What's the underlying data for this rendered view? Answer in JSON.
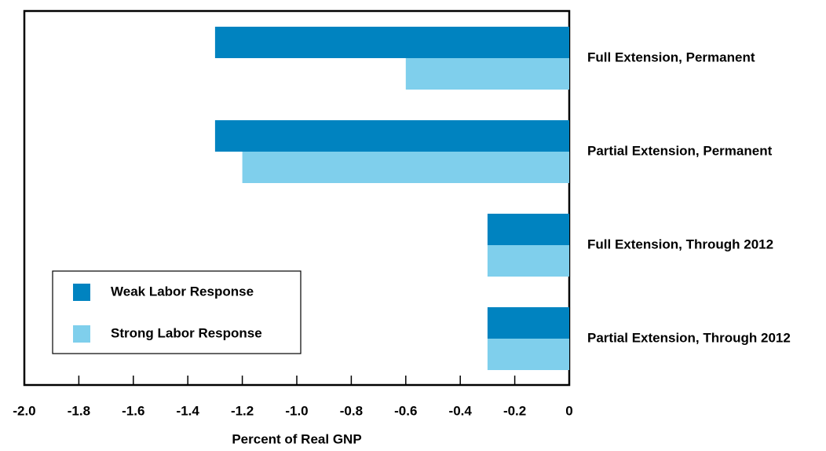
{
  "chart_data": {
    "type": "barh",
    "categories": [
      "Full Extension, Permanent",
      "Partial Extension, Permanent",
      "Full Extension, Through 2012",
      "Partial Extension, Through 2012"
    ],
    "series": [
      {
        "name": "Weak Labor Response",
        "color": "#0083c0",
        "values": [
          -1.3,
          -1.3,
          -0.3,
          -0.3
        ]
      },
      {
        "name": "Strong Labor Response",
        "color": "#7fcfec",
        "values": [
          -0.6,
          -1.2,
          -0.3,
          -0.3
        ]
      }
    ],
    "xlabel": "Percent of Real GNP",
    "xlim": [
      -2,
      0
    ],
    "xticks": [
      {
        "value": -2,
        "label": "-2.0"
      },
      -1.8,
      -1.6,
      -1.4,
      -1.2,
      {
        "value": -1,
        "label": "-1.0"
      },
      -0.8,
      -0.6,
      -0.4,
      -0.2,
      0
    ],
    "legend": "lower left"
  }
}
